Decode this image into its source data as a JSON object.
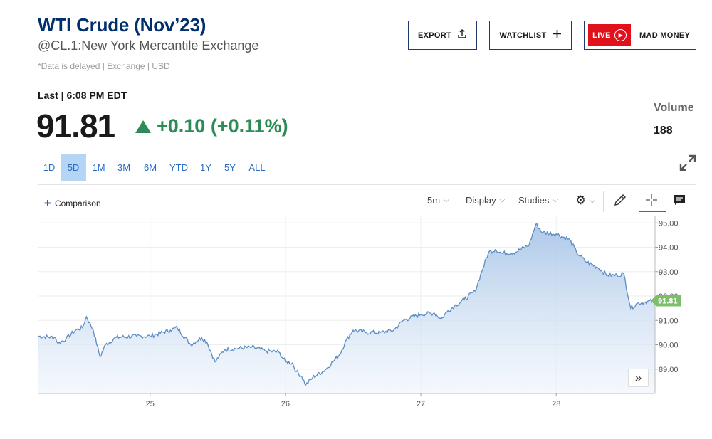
{
  "header": {
    "title": "WTI Crude (Nov’23)",
    "subtitle": "@CL.1:New York Mercantile Exchange",
    "delayed_note": "*Data is delayed | Exchange | USD"
  },
  "actions": {
    "export_label": "EXPORT",
    "watchlist_label": "WATCHLIST",
    "live_badge": "LIVE",
    "live_label": "MAD MONEY"
  },
  "quote": {
    "last_label": "Last | 6:08 PM EDT",
    "price": "91.81",
    "change": "+0.10 (+0.11%)",
    "change_color": "#2e8b57",
    "volume_label": "Volume",
    "volume_value": "188"
  },
  "ranges": {
    "items": [
      "1D",
      "5D",
      "1M",
      "3M",
      "6M",
      "YTD",
      "1Y",
      "5Y",
      "ALL"
    ],
    "active": "5D"
  },
  "toolbar": {
    "comparison_label": "Comparison",
    "interval_label": "5m",
    "display_label": "Display",
    "studies_label": "Studies"
  },
  "chart_data": {
    "type": "area",
    "x_ticks": [
      "25",
      "26",
      "27",
      "28"
    ],
    "y_ticks": [
      "89.00",
      "90.00",
      "91.00",
      "92.00",
      "93.00",
      "94.00",
      "95.00"
    ],
    "ylim": [
      88.0,
      95.3
    ],
    "xlim": [
      24.17,
      28.73
    ],
    "last_value_label": "91.81",
    "line_color": "#5b8cc4",
    "fill_color": "#a9c6e8",
    "last_marker_color": "#7cbf6a",
    "points": [
      [
        24.17,
        90.35
      ],
      [
        24.3,
        90.3
      ],
      [
        24.32,
        90.05
      ],
      [
        24.38,
        90.25
      ],
      [
        24.45,
        90.6
      ],
      [
        24.5,
        90.7
      ],
      [
        24.53,
        91.15
      ],
      [
        24.58,
        90.6
      ],
      [
        24.63,
        89.5
      ],
      [
        24.67,
        90.0
      ],
      [
        24.75,
        90.3
      ],
      [
        24.9,
        90.35
      ],
      [
        25.0,
        90.35
      ],
      [
        25.15,
        90.6
      ],
      [
        25.2,
        90.7
      ],
      [
        25.3,
        90.0
      ],
      [
        25.38,
        90.3
      ],
      [
        25.42,
        90.1
      ],
      [
        25.48,
        89.3
      ],
      [
        25.55,
        89.8
      ],
      [
        25.65,
        89.85
      ],
      [
        25.75,
        89.9
      ],
      [
        25.85,
        89.75
      ],
      [
        25.95,
        89.7
      ],
      [
        26.0,
        89.3
      ],
      [
        26.05,
        89.25
      ],
      [
        26.08,
        88.9
      ],
      [
        26.12,
        88.7
      ],
      [
        26.15,
        88.35
      ],
      [
        26.2,
        88.65
      ],
      [
        26.3,
        89.0
      ],
      [
        26.35,
        89.3
      ],
      [
        26.4,
        89.6
      ],
      [
        26.45,
        90.2
      ],
      [
        26.5,
        90.6
      ],
      [
        26.6,
        90.5
      ],
      [
        26.7,
        90.5
      ],
      [
        26.8,
        90.6
      ],
      [
        26.87,
        91.0
      ],
      [
        27.0,
        91.25
      ],
      [
        27.1,
        91.3
      ],
      [
        27.15,
        91.05
      ],
      [
        27.2,
        91.4
      ],
      [
        27.25,
        91.6
      ],
      [
        27.32,
        91.85
      ],
      [
        27.4,
        92.2
      ],
      [
        27.45,
        93.0
      ],
      [
        27.5,
        93.8
      ],
      [
        27.55,
        93.9
      ],
      [
        27.6,
        93.75
      ],
      [
        27.7,
        93.8
      ],
      [
        27.8,
        94.1
      ],
      [
        27.85,
        94.95
      ],
      [
        27.9,
        94.6
      ],
      [
        28.0,
        94.55
      ],
      [
        28.1,
        94.3
      ],
      [
        28.15,
        93.8
      ],
      [
        28.22,
        93.4
      ],
      [
        28.3,
        93.2
      ],
      [
        28.38,
        92.85
      ],
      [
        28.45,
        92.85
      ],
      [
        28.5,
        92.9
      ],
      [
        28.55,
        91.5
      ],
      [
        28.6,
        91.7
      ],
      [
        28.65,
        91.75
      ],
      [
        28.73,
        91.81
      ]
    ]
  }
}
